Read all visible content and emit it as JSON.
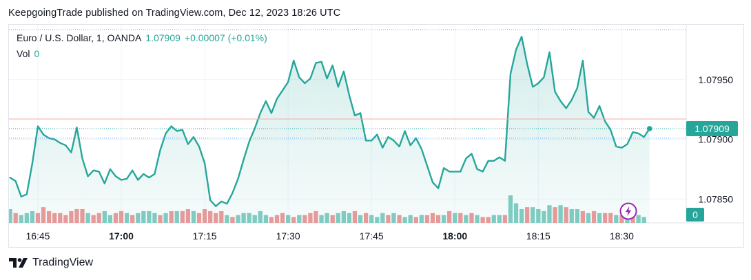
{
  "header": {
    "publish_text": "KeepgoingTrade published on TradingView.com, Dec 12, 2023 18:26 UTC"
  },
  "legend": {
    "symbol": "Euro / U.S. Dollar, 1, OANDA",
    "price": "1.07909",
    "change": "+0.00007 (+0.01%)",
    "vol_label": "Vol",
    "vol_value": "0"
  },
  "footer": {
    "brand": "TradingView"
  },
  "colors": {
    "line": "#26a69a",
    "area": "#26a69a",
    "vol_up": "#83cdc4",
    "vol_down": "#ee9a9a",
    "grid": "#f0f3fa",
    "last_price_badge": "#26a69a",
    "snapshot_icon": "#9c27b0"
  },
  "icons": {
    "snapshot": "lightning-bolt-icon",
    "logo": "tradingview-logo-icon"
  },
  "chart_data": {
    "type": "area",
    "x_tick_labels": [
      "16:45",
      "17:00",
      "17:15",
      "17:30",
      "17:45",
      "18:00",
      "18:15",
      "18:30"
    ],
    "x_tick_bold": [
      "17:00",
      "18:00"
    ],
    "x_tick_minutes": [
      1005,
      1020,
      1035,
      1050,
      1065,
      1080,
      1095,
      1110
    ],
    "y_tick_labels": [
      "1.07950",
      "1.07900",
      "1.07850"
    ],
    "y_tick_values": [
      1.0795,
      1.079,
      1.0785
    ],
    "ylim": [
      1.0783,
      1.07996
    ],
    "x_range_minutes": [
      999.8,
      1121.6
    ],
    "last_price_label": "1.07909",
    "last_price": 1.07909,
    "volume_label": "0",
    "grid": true,
    "price_series": {
      "start_minute": 1000,
      "values": [
        1.07868,
        1.07865,
        1.07852,
        1.07854,
        1.0788,
        1.07911,
        1.07904,
        1.07901,
        1.079,
        1.07897,
        1.07895,
        1.07889,
        1.0791,
        1.07884,
        1.07869,
        1.07874,
        1.07873,
        1.07863,
        1.07875,
        1.07869,
        1.07866,
        1.07867,
        1.07874,
        1.07866,
        1.07871,
        1.07868,
        1.07871,
        1.07891,
        1.07905,
        1.07911,
        1.07907,
        1.07908,
        1.07896,
        1.07902,
        1.07894,
        1.0788,
        1.07849,
        1.07844,
        1.07848,
        1.07846,
        1.07855,
        1.07867,
        1.07883,
        1.07898,
        1.07909,
        1.07922,
        1.07932,
        1.07922,
        1.07934,
        1.07941,
        1.07948,
        1.07966,
        1.07952,
        1.07947,
        1.07951,
        1.07964,
        1.07965,
        1.07951,
        1.07962,
        1.07944,
        1.07957,
        1.07937,
        1.0792,
        1.07922,
        1.07899,
        1.07899,
        1.07904,
        1.07893,
        1.07902,
        1.07899,
        1.07894,
        1.07907,
        1.07895,
        1.07901,
        1.07892,
        1.07878,
        1.07864,
        1.07859,
        1.07876,
        1.07873,
        1.07873,
        1.07873,
        1.07884,
        1.07888,
        1.07875,
        1.07873,
        1.07882,
        1.07882,
        1.07885,
        1.07882,
        1.07955,
        1.07975,
        1.07986,
        1.07963,
        1.07944,
        1.07947,
        1.07952,
        1.07973,
        1.0794,
        1.07932,
        1.07926,
        1.07933,
        1.07943,
        1.07966,
        1.07923,
        1.07918,
        1.07928,
        1.07915,
        1.07908,
        1.07894,
        1.07893,
        1.07896,
        1.07906,
        1.07905,
        1.07902,
        1.07909
      ]
    },
    "volume_series": {
      "start_minute": 1000,
      "bars": [
        {
          "v": 7,
          "up": true
        },
        {
          "v": 5,
          "up": false
        },
        {
          "v": 4,
          "up": true
        },
        {
          "v": 5,
          "up": true
        },
        {
          "v": 6,
          "up": true
        },
        {
          "v": 5,
          "up": false
        },
        {
          "v": 8,
          "up": false
        },
        {
          "v": 6,
          "up": false
        },
        {
          "v": 5,
          "up": false
        },
        {
          "v": 5,
          "up": false
        },
        {
          "v": 4,
          "up": false
        },
        {
          "v": 6,
          "up": false
        },
        {
          "v": 7,
          "up": false
        },
        {
          "v": 7,
          "up": false
        },
        {
          "v": 5,
          "up": true
        },
        {
          "v": 4,
          "up": false
        },
        {
          "v": 5,
          "up": false
        },
        {
          "v": 6,
          "up": true
        },
        {
          "v": 4,
          "up": true
        },
        {
          "v": 5,
          "up": false
        },
        {
          "v": 6,
          "up": false
        },
        {
          "v": 5,
          "up": true
        },
        {
          "v": 4,
          "up": false
        },
        {
          "v": 5,
          "up": true
        },
        {
          "v": 6,
          "up": true
        },
        {
          "v": 6,
          "up": true
        },
        {
          "v": 5,
          "up": true
        },
        {
          "v": 4,
          "up": false
        },
        {
          "v": 5,
          "up": true
        },
        {
          "v": 6,
          "up": false
        },
        {
          "v": 6,
          "up": true
        },
        {
          "v": 6,
          "up": false
        },
        {
          "v": 7,
          "up": false
        },
        {
          "v": 6,
          "up": true
        },
        {
          "v": 5,
          "up": false
        },
        {
          "v": 7,
          "up": false
        },
        {
          "v": 6,
          "up": false
        },
        {
          "v": 5,
          "up": false
        },
        {
          "v": 6,
          "up": false
        },
        {
          "v": 4,
          "up": true
        },
        {
          "v": 3,
          "up": false
        },
        {
          "v": 4,
          "up": true
        },
        {
          "v": 5,
          "up": true
        },
        {
          "v": 5,
          "up": true
        },
        {
          "v": 4,
          "up": true
        },
        {
          "v": 6,
          "up": true
        },
        {
          "v": 4,
          "up": true
        },
        {
          "v": 3,
          "up": false
        },
        {
          "v": 4,
          "up": false
        },
        {
          "v": 5,
          "up": false
        },
        {
          "v": 4,
          "up": true
        },
        {
          "v": 3,
          "up": false
        },
        {
          "v": 4,
          "up": true
        },
        {
          "v": 4,
          "up": false
        },
        {
          "v": 5,
          "up": false
        },
        {
          "v": 6,
          "up": false
        },
        {
          "v": 4,
          "up": true
        },
        {
          "v": 5,
          "up": true
        },
        {
          "v": 4,
          "up": false
        },
        {
          "v": 5,
          "up": true
        },
        {
          "v": 6,
          "up": true
        },
        {
          "v": 5,
          "up": true
        },
        {
          "v": 6,
          "up": false
        },
        {
          "v": 4,
          "up": true
        },
        {
          "v": 5,
          "up": false
        },
        {
          "v": 4,
          "up": true
        },
        {
          "v": 3,
          "up": true
        },
        {
          "v": 5,
          "up": true
        },
        {
          "v": 4,
          "up": false
        },
        {
          "v": 5,
          "up": true
        },
        {
          "v": 4,
          "up": false
        },
        {
          "v": 3,
          "up": true
        },
        {
          "v": 4,
          "up": true
        },
        {
          "v": 3,
          "up": false
        },
        {
          "v": 4,
          "up": true
        },
        {
          "v": 4,
          "up": false
        },
        {
          "v": 5,
          "up": false
        },
        {
          "v": 4,
          "up": false
        },
        {
          "v": 4,
          "up": true
        },
        {
          "v": 6,
          "up": false
        },
        {
          "v": 5,
          "up": true
        },
        {
          "v": 5,
          "up": false
        },
        {
          "v": 4,
          "up": true
        },
        {
          "v": 5,
          "up": false
        },
        {
          "v": 4,
          "up": true
        },
        {
          "v": 3,
          "up": false
        },
        {
          "v": 3,
          "up": false
        },
        {
          "v": 4,
          "up": true
        },
        {
          "v": 4,
          "up": true
        },
        {
          "v": 4,
          "up": false
        },
        {
          "v": 14,
          "up": true
        },
        {
          "v": 10,
          "up": true
        },
        {
          "v": 7,
          "up": true
        },
        {
          "v": 8,
          "up": false
        },
        {
          "v": 8,
          "up": true
        },
        {
          "v": 7,
          "up": true
        },
        {
          "v": 6,
          "up": true
        },
        {
          "v": 9,
          "up": true
        },
        {
          "v": 8,
          "up": false
        },
        {
          "v": 9,
          "up": true
        },
        {
          "v": 8,
          "up": false
        },
        {
          "v": 7,
          "up": true
        },
        {
          "v": 7,
          "up": true
        },
        {
          "v": 6,
          "up": false
        },
        {
          "v": 5,
          "up": true
        },
        {
          "v": 6,
          "up": false
        },
        {
          "v": 5,
          "up": true
        },
        {
          "v": 5,
          "up": false
        },
        {
          "v": 5,
          "up": false
        },
        {
          "v": 4,
          "up": true
        },
        {
          "v": 4,
          "up": false
        },
        {
          "v": 3,
          "up": true
        },
        {
          "v": 4,
          "up": false
        },
        {
          "v": 4,
          "up": true
        },
        {
          "v": 3,
          "up": true
        }
      ]
    }
  }
}
